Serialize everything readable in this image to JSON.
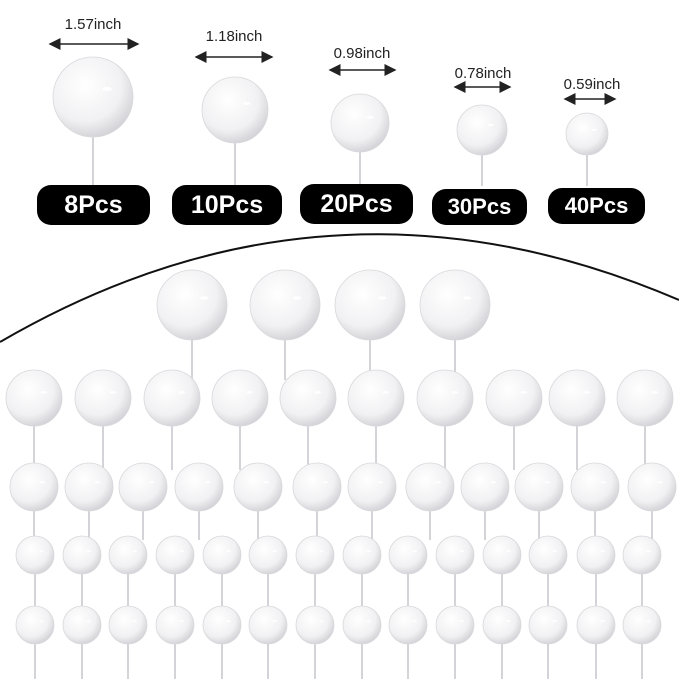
{
  "sizes": [
    {
      "size": "1.57inch",
      "quantity": "8Pcs"
    },
    {
      "size": "1.18inch",
      "quantity": "10Pcs"
    },
    {
      "size": "0.98inch",
      "quantity": "20Pcs"
    },
    {
      "size": "0.78inch",
      "quantity": "30Pcs"
    },
    {
      "size": "0.59inch",
      "quantity": "40Pcs"
    }
  ],
  "colors": {
    "ball": "#ffffff",
    "badge": "#000000",
    "arrow": "#222222"
  }
}
